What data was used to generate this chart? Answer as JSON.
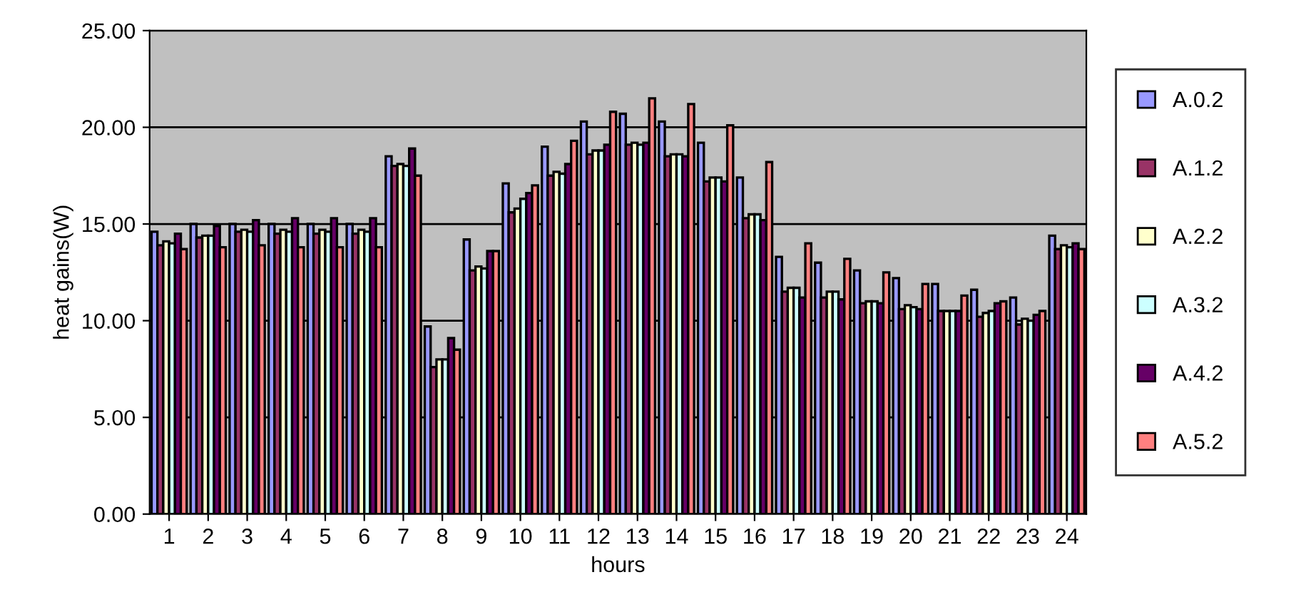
{
  "chart_data": {
    "type": "bar",
    "xlabel": "hours",
    "ylabel": "heat gains(W)",
    "categories": [
      "1",
      "2",
      "3",
      "4",
      "5",
      "6",
      "7",
      "8",
      "9",
      "10",
      "11",
      "12",
      "13",
      "14",
      "15",
      "16",
      "17",
      "18",
      "19",
      "20",
      "21",
      "22",
      "23",
      "24"
    ],
    "series": [
      {
        "name": "A.0.2",
        "color": "#9999ff",
        "values": [
          14.6,
          15.0,
          15.0,
          15.0,
          15.0,
          15.0,
          18.5,
          9.7,
          14.2,
          17.1,
          19.0,
          20.3,
          20.7,
          20.3,
          19.2,
          17.4,
          13.3,
          13.0,
          12.6,
          12.2,
          11.9,
          11.6,
          11.2,
          14.4
        ]
      },
      {
        "name": "A.1.2",
        "color": "#993366",
        "values": [
          13.9,
          14.3,
          14.6,
          14.5,
          14.5,
          14.5,
          18.0,
          7.6,
          12.6,
          15.6,
          17.5,
          18.6,
          19.1,
          18.5,
          17.2,
          15.3,
          11.5,
          11.2,
          10.9,
          10.6,
          10.5,
          10.2,
          9.8,
          13.7
        ]
      },
      {
        "name": "A.2.2",
        "color": "#ffffcc",
        "values": [
          14.1,
          14.4,
          14.7,
          14.7,
          14.7,
          14.7,
          18.1,
          8.0,
          12.8,
          15.8,
          17.7,
          18.8,
          19.2,
          18.6,
          17.4,
          15.5,
          11.7,
          11.5,
          11.0,
          10.8,
          10.5,
          10.4,
          10.1,
          13.9
        ]
      },
      {
        "name": "A.3.2",
        "color": "#ccffff",
        "values": [
          14.0,
          14.4,
          14.6,
          14.6,
          14.6,
          14.6,
          18.0,
          8.0,
          12.7,
          16.3,
          17.6,
          18.8,
          19.1,
          18.6,
          17.4,
          15.5,
          11.7,
          11.5,
          11.0,
          10.7,
          10.5,
          10.5,
          10.0,
          13.8
        ]
      },
      {
        "name": "A.4.2",
        "color": "#660066",
        "values": [
          14.5,
          14.9,
          15.2,
          15.3,
          15.3,
          15.3,
          18.9,
          9.1,
          13.6,
          16.6,
          18.1,
          19.1,
          19.2,
          18.5,
          17.2,
          15.2,
          11.2,
          11.1,
          10.9,
          10.6,
          10.5,
          10.9,
          10.3,
          14.0
        ]
      },
      {
        "name": "A.5.2",
        "color": "#ff8080",
        "values": [
          13.7,
          13.8,
          13.9,
          13.8,
          13.8,
          13.8,
          17.5,
          8.5,
          13.6,
          17.0,
          19.3,
          20.8,
          21.5,
          21.2,
          20.1,
          18.2,
          14.0,
          13.2,
          12.5,
          11.9,
          11.3,
          11.0,
          10.5,
          13.7
        ]
      }
    ],
    "ylim": [
      0,
      25
    ],
    "yticks": [
      {
        "value": 0,
        "label": "0.00"
      },
      {
        "value": 5,
        "label": "5.00"
      },
      {
        "value": 10,
        "label": "10.00"
      },
      {
        "value": 15,
        "label": "15.00"
      },
      {
        "value": 20,
        "label": "20.00"
      },
      {
        "value": 25,
        "label": "25.00"
      }
    ],
    "grid": "y",
    "legend": "right"
  }
}
